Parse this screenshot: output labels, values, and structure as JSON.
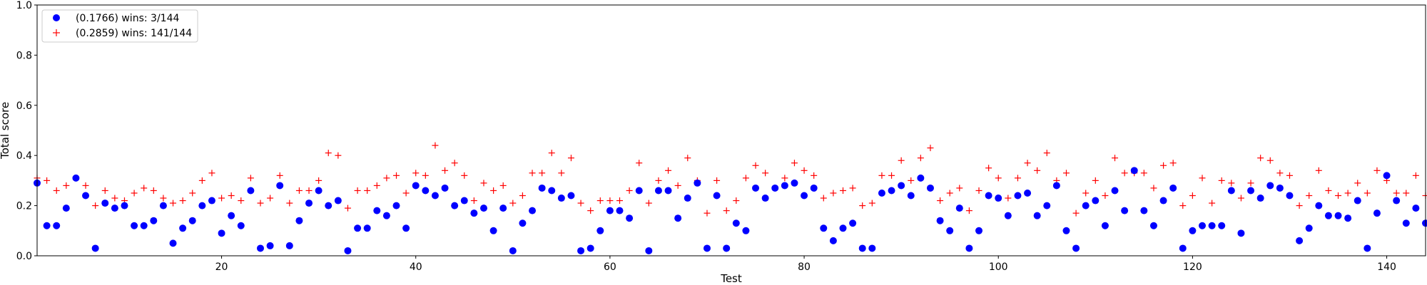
{
  "chart_data": {
    "type": "scatter",
    "xlabel": "Test",
    "ylabel": "Total score",
    "xlim": [
      1,
      144
    ],
    "ylim": [
      0,
      1.0
    ],
    "x_ticks": [
      20,
      40,
      60,
      80,
      100,
      120,
      140
    ],
    "y_ticks": [
      0.0,
      0.2,
      0.4,
      0.6,
      0.8,
      1.0
    ],
    "grid": false,
    "legend_position": "top-left",
    "series": [
      {
        "name": "(0.1766) wins: 3/144",
        "color": "#0000ff",
        "marker": "circle",
        "y": [
          0.29,
          0.12,
          0.12,
          0.19,
          0.31,
          0.24,
          0.03,
          0.21,
          0.19,
          0.2,
          0.12,
          0.12,
          0.14,
          0.2,
          0.05,
          0.11,
          0.14,
          0.2,
          0.22,
          0.09,
          0.16,
          0.12,
          0.26,
          0.03,
          0.04,
          0.28,
          0.04,
          0.14,
          0.21,
          0.26,
          0.2,
          0.22,
          0.02,
          0.11,
          0.11,
          0.18,
          0.16,
          0.2,
          0.11,
          0.28,
          0.26,
          0.24,
          0.27,
          0.2,
          0.22,
          0.17,
          0.19,
          0.1,
          0.19,
          0.02,
          0.13,
          0.18,
          0.27,
          0.26,
          0.23,
          0.24,
          0.02,
          0.03,
          0.1,
          0.18,
          0.18,
          0.15,
          0.26,
          0.02,
          0.26,
          0.26,
          0.15,
          0.23,
          0.29,
          0.03,
          0.24,
          0.03,
          0.13,
          0.1,
          0.27,
          0.23,
          0.27,
          0.28,
          0.29,
          0.24,
          0.27,
          0.11,
          0.06,
          0.11,
          0.13,
          0.03,
          0.03,
          0.25,
          0.26,
          0.28,
          0.24,
          0.31,
          0.27,
          0.14,
          0.1,
          0.19,
          0.03,
          0.1,
          0.24,
          0.23,
          0.16,
          0.24,
          0.25,
          0.16,
          0.2,
          0.28,
          0.1,
          0.03,
          0.2,
          0.22,
          0.12,
          0.26,
          0.18,
          0.34,
          0.18,
          0.12,
          0.22,
          0.27,
          0.03,
          0.1,
          0.12,
          0.12,
          0.12,
          0.26,
          0.09,
          0.26,
          0.23,
          0.28,
          0.27,
          0.24,
          0.06,
          0.11,
          0.2,
          0.16,
          0.16,
          0.15,
          0.22,
          0.03,
          0.17,
          0.32,
          0.22,
          0.13,
          0.19,
          0.13
        ]
      },
      {
        "name": "(0.2859) wins: 141/144",
        "color": "#ff0000",
        "marker": "plus",
        "y": [
          0.31,
          0.3,
          0.26,
          0.28,
          0.31,
          0.28,
          0.2,
          0.26,
          0.23,
          0.22,
          0.25,
          0.27,
          0.26,
          0.23,
          0.21,
          0.22,
          0.25,
          0.3,
          0.33,
          0.23,
          0.24,
          0.22,
          0.31,
          0.21,
          0.23,
          0.32,
          0.21,
          0.26,
          0.26,
          0.3,
          0.41,
          0.4,
          0.19,
          0.26,
          0.26,
          0.28,
          0.31,
          0.32,
          0.25,
          0.33,
          0.32,
          0.44,
          0.34,
          0.37,
          0.32,
          0.22,
          0.29,
          0.26,
          0.28,
          0.21,
          0.24,
          0.33,
          0.33,
          0.41,
          0.33,
          0.39,
          0.21,
          0.18,
          0.22,
          0.22,
          0.22,
          0.26,
          0.37,
          0.21,
          0.3,
          0.34,
          0.28,
          0.39,
          0.3,
          0.17,
          0.3,
          0.18,
          0.22,
          0.31,
          0.36,
          0.33,
          0.27,
          0.31,
          0.37,
          0.34,
          0.32,
          0.23,
          0.25,
          0.26,
          0.27,
          0.2,
          0.21,
          0.32,
          0.32,
          0.38,
          0.3,
          0.39,
          0.43,
          0.22,
          0.25,
          0.27,
          0.18,
          0.26,
          0.35,
          0.31,
          0.23,
          0.31,
          0.37,
          0.34,
          0.41,
          0.3,
          0.33,
          0.17,
          0.25,
          0.3,
          0.24,
          0.39,
          0.33,
          0.33,
          0.33,
          0.27,
          0.36,
          0.37,
          0.2,
          0.24,
          0.31,
          0.21,
          0.3,
          0.29,
          0.23,
          0.29,
          0.39,
          0.38,
          0.33,
          0.32,
          0.2,
          0.24,
          0.34,
          0.26,
          0.24,
          0.25,
          0.29,
          0.25,
          0.34,
          0.3,
          0.25,
          0.25,
          0.32,
          0.24
        ]
      }
    ]
  }
}
